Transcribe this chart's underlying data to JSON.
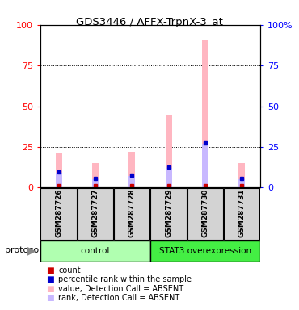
{
  "title": "GDS3446 / AFFX-TrpnX-3_at",
  "samples": [
    "GSM287726",
    "GSM287727",
    "GSM287728",
    "GSM287729",
    "GSM287730",
    "GSM287731"
  ],
  "value_absent": [
    21,
    15,
    22,
    45,
    91,
    15
  ],
  "rank_absent": [
    9,
    5,
    7,
    12,
    27,
    5
  ],
  "ylim": [
    0,
    100
  ],
  "left_ticks": [
    0,
    25,
    50,
    75,
    100
  ],
  "right_ticks": [
    0,
    25,
    50,
    75,
    100
  ],
  "left_tick_labels": [
    "0",
    "25",
    "50",
    "75",
    "100"
  ],
  "right_tick_labels": [
    "0",
    "25",
    "50",
    "75",
    "100%"
  ],
  "color_value_absent": "#ffb6c1",
  "color_rank_absent": "#c8b8ff",
  "color_count": "#cc0000",
  "color_percentile": "#0000cc",
  "bar_width": 0.18,
  "control_color": "#b0ffb0",
  "stat3_color": "#44ee44",
  "sample_box_color": "#d3d3d3",
  "legend_items": [
    {
      "color": "#cc0000",
      "marker": "s",
      "label": "count"
    },
    {
      "color": "#0000cc",
      "marker": "s",
      "label": "percentile rank within the sample"
    },
    {
      "color": "#ffb6c1",
      "marker": "s",
      "label": "value, Detection Call = ABSENT"
    },
    {
      "color": "#c8b8ff",
      "marker": "s",
      "label": "rank, Detection Call = ABSENT"
    }
  ],
  "background_color": "#ffffff"
}
